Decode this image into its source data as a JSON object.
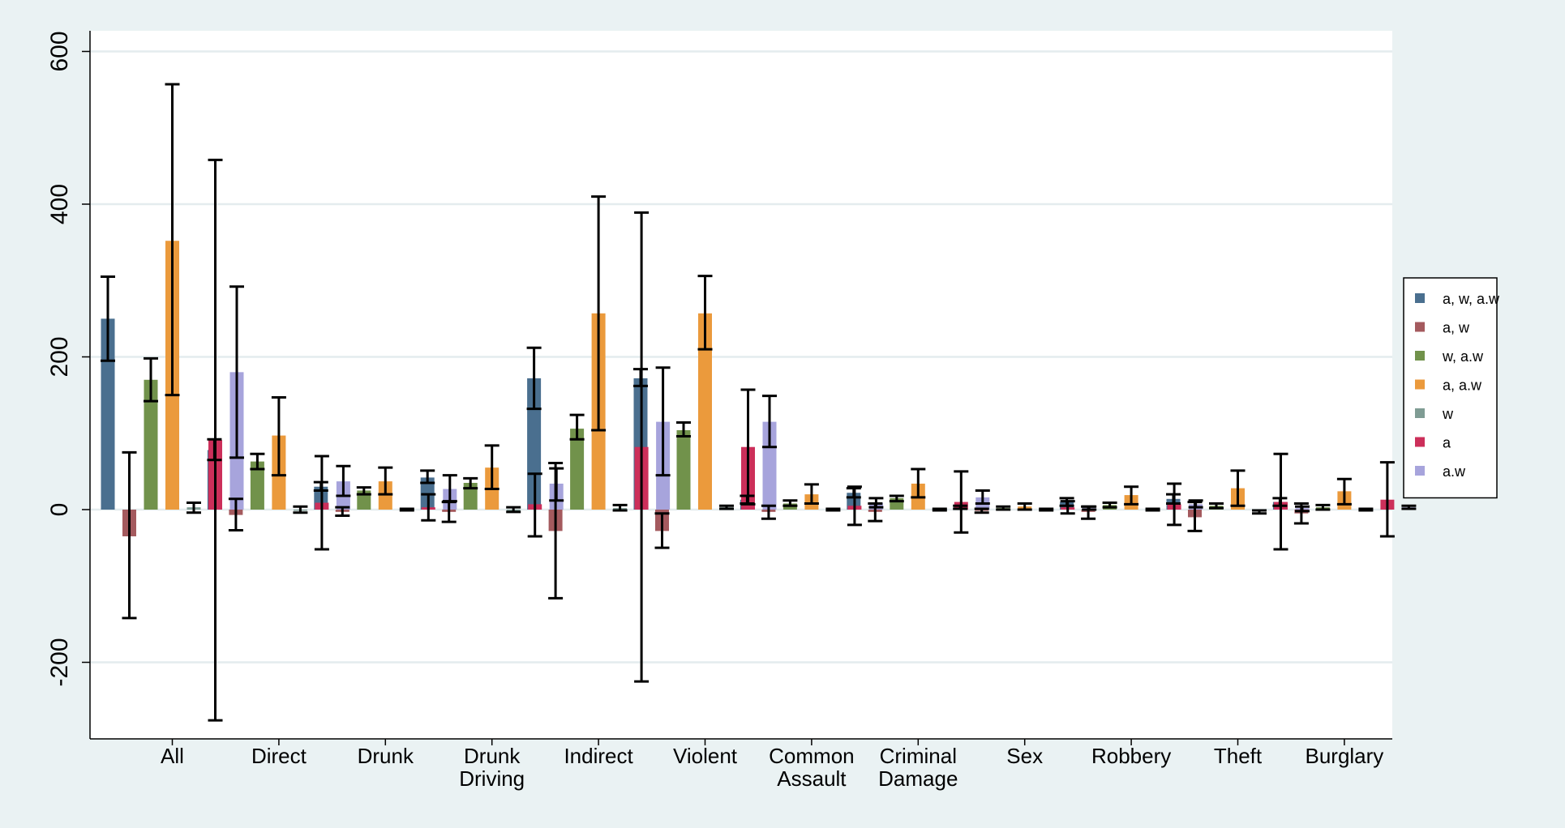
{
  "chart_data": {
    "type": "bar",
    "title": "",
    "xlabel": "",
    "ylabel": "",
    "ylim": [
      -300,
      600
    ],
    "yticks": [
      -200,
      0,
      200,
      400,
      600
    ],
    "grid": true,
    "legend_position": "right",
    "categories": [
      [
        "All"
      ],
      [
        "Direct"
      ],
      [
        "Drunk"
      ],
      [
        "Drunk",
        "Driving"
      ],
      [
        "Indirect"
      ],
      [
        "Violent"
      ],
      [
        "Common",
        "Assault"
      ],
      [
        "Criminal",
        "Damage"
      ],
      [
        "Sex"
      ],
      [
        "Robbery"
      ],
      [
        "Theft"
      ],
      [
        "Burglary"
      ]
    ],
    "series": [
      {
        "name": "a, w, a.w",
        "color": "#4a6f8f",
        "values": [
          250,
          78,
          30,
          42,
          172,
          172,
          13,
          22,
          3,
          10,
          14,
          10
        ],
        "ci_low": [
          195,
          65,
          25,
          35,
          132,
          162,
          8,
          16,
          1,
          5,
          8,
          5
        ],
        "ci_high": [
          305,
          92,
          36,
          51,
          212,
          184,
          18,
          28,
          5,
          15,
          20,
          15
        ]
      },
      {
        "name": "a, w",
        "color": "#a45a5e",
        "values": [
          -35,
          -7,
          -3,
          -3,
          -28,
          -28,
          -3,
          -3,
          -1,
          -3,
          -10,
          -5
        ],
        "ci_low": [
          -142,
          -27,
          -8,
          -16,
          -116,
          -50,
          -12,
          -15,
          -4,
          -12,
          -28,
          -18
        ],
        "ci_high": [
          75,
          14,
          3,
          10,
          61,
          -5,
          5,
          8,
          1,
          4,
          10,
          8
        ]
      },
      {
        "name": "w, a.w",
        "color": "#71924b",
        "values": [
          170,
          63,
          25,
          35,
          106,
          104,
          8,
          15,
          2,
          6,
          5,
          3
        ],
        "ci_low": [
          142,
          53,
          20,
          28,
          92,
          96,
          5,
          11,
          0,
          3,
          2,
          0
        ],
        "ci_high": [
          198,
          73,
          29,
          41,
          124,
          114,
          12,
          18,
          4,
          9,
          8,
          6
        ]
      },
      {
        "name": "a, a.w",
        "color": "#eb9a3c",
        "values": [
          352,
          97,
          37,
          55,
          257,
          257,
          20,
          34,
          4,
          19,
          28,
          24
        ],
        "ci_low": [
          150,
          45,
          20,
          27,
          104,
          210,
          8,
          16,
          0,
          7,
          5,
          7
        ],
        "ci_high": [
          557,
          147,
          55,
          84,
          410,
          306,
          33,
          53,
          8,
          30,
          51,
          40
        ]
      },
      {
        "name": "w",
        "color": "#7f9c94",
        "values": [
          3,
          0,
          0,
          0,
          2,
          3,
          0,
          0,
          0,
          0,
          0,
          0
        ],
        "ci_low": [
          -4,
          -4,
          -1,
          -3,
          -1,
          1,
          -1,
          -1,
          -1,
          -1,
          -5,
          -1
        ],
        "ci_high": [
          9,
          4,
          1,
          3,
          6,
          5,
          1,
          1,
          1,
          1,
          -1,
          1
        ]
      },
      {
        "name": "a",
        "color": "#cc2f5a",
        "values": [
          91,
          9,
          3,
          7,
          82,
          82,
          5,
          10,
          3,
          7,
          10,
          13
        ],
        "ci_low": [
          -276,
          -52,
          -14,
          -35,
          -225,
          7,
          -20,
          -30,
          -5,
          -20,
          -52,
          -35
        ],
        "ci_high": [
          458,
          70,
          20,
          47,
          389,
          157,
          30,
          50,
          11,
          34,
          73,
          62
        ]
      },
      {
        "name": "a.w",
        "color": "#a7a4dc",
        "values": [
          180,
          37,
          27,
          34,
          115,
          115,
          9,
          16,
          2,
          7,
          2,
          3
        ],
        "ci_low": [
          68,
          18,
          11,
          12,
          45,
          82,
          3,
          8,
          0,
          3,
          -2,
          1
        ],
        "ci_high": [
          292,
          57,
          45,
          54,
          186,
          149,
          15,
          25,
          4,
          12,
          4,
          5
        ]
      }
    ]
  }
}
